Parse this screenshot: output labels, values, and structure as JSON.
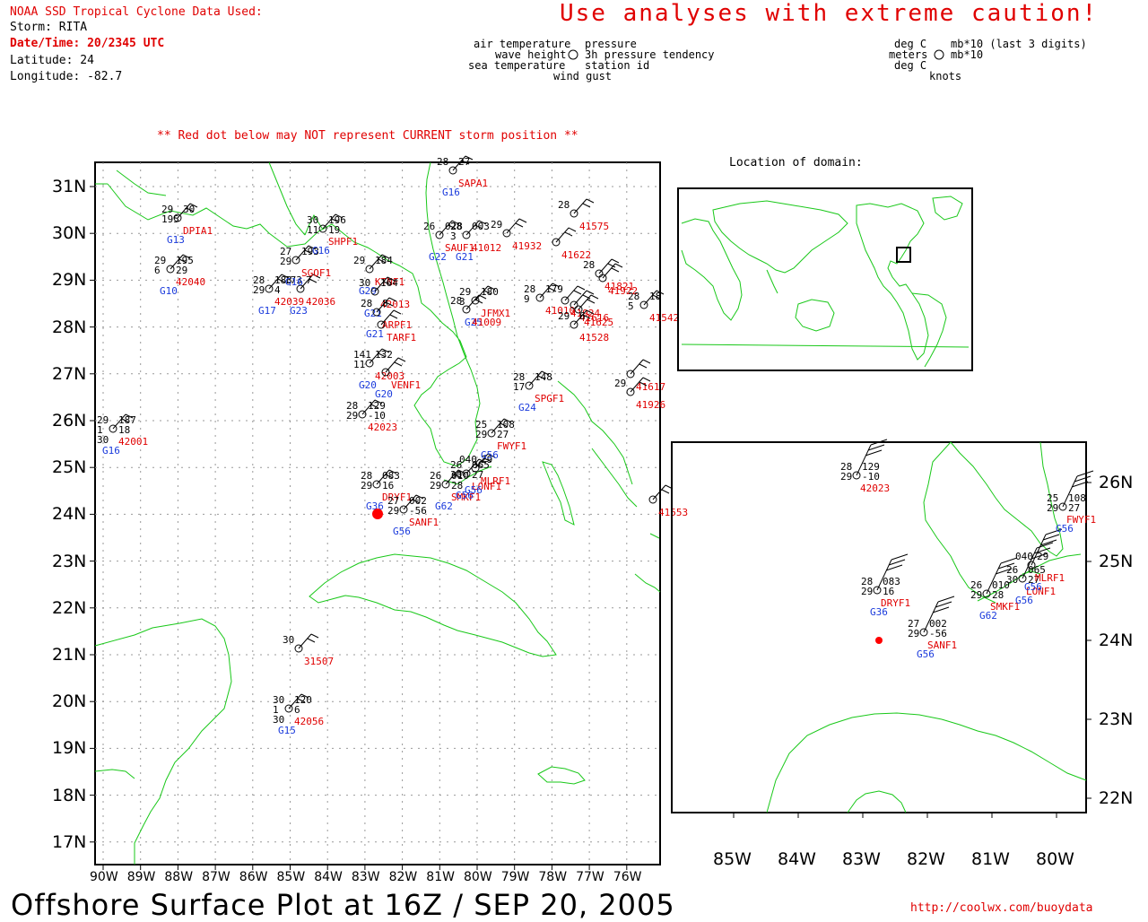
{
  "header": {
    "source": "NOAA SSD Tropical Cyclone Data Used:",
    "storm": "Storm: RITA",
    "datetime": "Date/Time: 20/2345 UTC",
    "latitude": "Latitude: 24",
    "longitude": "Longitude: -82.7",
    "warning": "Use analyses with extreme caution!",
    "red_dot_note": "** Red dot below may NOT represent CURRENT storm position **"
  },
  "legend": {
    "left_top": "air temperature",
    "left_mid": "wave height",
    "left_bot": "sea temperature",
    "right_top": "pressure",
    "right_mid": "3h pressure tendency",
    "right_bot": "station id",
    "bottom": "wind gust",
    "unit_left_top": "deg C",
    "unit_left_mid": "meters",
    "unit_left_bot": "deg C",
    "unit_right_top": "mb*10 (last 3 digits)",
    "unit_right_mid": "mb*10",
    "unit_bottom": "knots"
  },
  "location_label": "Location of domain:",
  "main_map": {
    "lat_labels": [
      "31N",
      "30N",
      "29N",
      "28N",
      "27N",
      "26N",
      "25N",
      "24N",
      "23N",
      "22N",
      "21N",
      "20N",
      "19N",
      "18N",
      "17N"
    ],
    "lon_labels": [
      "90W",
      "89W",
      "88W",
      "87W",
      "86W",
      "85W",
      "84W",
      "83W",
      "82W",
      "81W",
      "80W",
      "79W",
      "78W",
      "77W",
      "76W"
    ],
    "storm_lat": 24,
    "storm_lon": -82.7
  },
  "inset_map": {
    "lat_labels": [
      "26N",
      "25N",
      "24N",
      "23N",
      "22N"
    ],
    "lon_labels": [
      "85W",
      "84W",
      "83W",
      "82W",
      "81W",
      "80W"
    ]
  },
  "stations": [
    {
      "id": "DPIA1",
      "obs": [
        "29",
        "30",
        "195"
      ],
      "group": "G13"
    },
    {
      "id": "42040",
      "obs": [
        "29",
        "195",
        "6",
        "29"
      ],
      "group": "G10"
    },
    {
      "id": "42039",
      "obs": [
        "28",
        "183",
        "29",
        "4"
      ],
      "group": "G17"
    },
    {
      "id": "42036",
      "obs": [
        "173",
        "7"
      ],
      "group": "G23"
    },
    {
      "id": "SGOF1",
      "obs": [
        "27",
        "193",
        "29"
      ],
      "group": "G16"
    },
    {
      "id": "SHPF1",
      "obs": [
        "30",
        "196",
        "11",
        "19"
      ],
      "group": "G16"
    },
    {
      "id": "KTNF1",
      "obs": [
        "29",
        "184"
      ],
      "group": "G29"
    },
    {
      "id": "42013",
      "obs": [
        "30",
        "164"
      ],
      "group": "G21"
    },
    {
      "id": "ARPF1",
      "obs": [
        "28",
        "8"
      ],
      "group": "G21"
    },
    {
      "id": "TARF1",
      "obs": [],
      "group": ""
    },
    {
      "id": "42003",
      "obs": [
        "141",
        "132",
        "11"
      ],
      "group": "G20"
    },
    {
      "id": "VENF1",
      "obs": [],
      "group": "G20"
    },
    {
      "id": "42023",
      "obs": [
        "28",
        "129",
        "29",
        "-10"
      ],
      "group": ""
    },
    {
      "id": "42001",
      "obs": [
        "29",
        "187",
        "1",
        "18",
        "30"
      ],
      "group": "G16"
    },
    {
      "id": "DRYF1",
      "obs": [
        "28",
        "083",
        "29",
        "16"
      ],
      "group": "G36"
    },
    {
      "id": "SANF1",
      "obs": [
        "27",
        "002",
        "29",
        "-56"
      ],
      "group": "G56"
    },
    {
      "id": "SMKF1",
      "obs": [
        "26",
        "010",
        "29",
        "28"
      ],
      "group": "G62"
    },
    {
      "id": "LONF1",
      "obs": [
        "26",
        "065",
        "30",
        "27"
      ],
      "group": "G56"
    },
    {
      "id": "MLRF1",
      "obs": [
        "040",
        "29"
      ],
      "group": "G56"
    },
    {
      "id": "FWYF1",
      "obs": [
        "25",
        "108",
        "29",
        "27"
      ],
      "group": "G56"
    },
    {
      "id": "SPGF1",
      "obs": [
        "28",
        "148",
        "17"
      ],
      "group": "G24"
    },
    {
      "id": "41012",
      "obs": [
        "28",
        "003",
        "3"
      ],
      "group": "G21"
    },
    {
      "id": "SAUF1",
      "obs": [
        "26",
        "028"
      ],
      "group": "G22"
    },
    {
      "id": "41932",
      "obs": [
        "29"
      ],
      "group": ""
    },
    {
      "id": "41575",
      "obs": [
        "28"
      ],
      "group": ""
    },
    {
      "id": "41622",
      "obs": [],
      "group": ""
    },
    {
      "id": "41821",
      "obs": [
        "28"
      ],
      "group": ""
    },
    {
      "id": "41922",
      "obs": [],
      "group": ""
    },
    {
      "id": "41010",
      "obs": [
        "28",
        "179",
        "9"
      ],
      "group": ""
    },
    {
      "id": "41924",
      "obs": [],
      "group": ""
    },
    {
      "id": "41616",
      "obs": [],
      "group": ""
    },
    {
      "id": "41625",
      "obs": [],
      "group": ""
    },
    {
      "id": "41528",
      "obs": [
        "29",
        "6"
      ],
      "group": ""
    },
    {
      "id": "41542",
      "obs": [
        "28",
        "18",
        "5"
      ],
      "group": ""
    },
    {
      "id": "JFMX1",
      "obs": [
        "29",
        "180",
        "3"
      ],
      "group": "G25"
    },
    {
      "id": "41009",
      "obs": [
        "28"
      ],
      "group": ""
    },
    {
      "id": "41617",
      "obs": [],
      "group": ""
    },
    {
      "id": "41926",
      "obs": [
        "29"
      ],
      "group": ""
    },
    {
      "id": "41553",
      "obs": [],
      "group": ""
    },
    {
      "id": "31507",
      "obs": [
        "30"
      ],
      "group": ""
    },
    {
      "id": "42056",
      "obs": [
        "30",
        "120",
        "1",
        "6",
        "30"
      ],
      "group": "G15"
    },
    {
      "id": "SAPA1",
      "obs": [
        "28",
        "27"
      ],
      "group": "G16"
    }
  ],
  "footer": {
    "title": "Offshore Surface Plot at 16Z / SEP 20, 2005",
    "url": "http://coolwx.com/buoydata"
  },
  "colors": {
    "coast": "#19c819",
    "text_red": "#e00000",
    "text_blue": "#1a3adc",
    "dot": "#ff0000"
  }
}
